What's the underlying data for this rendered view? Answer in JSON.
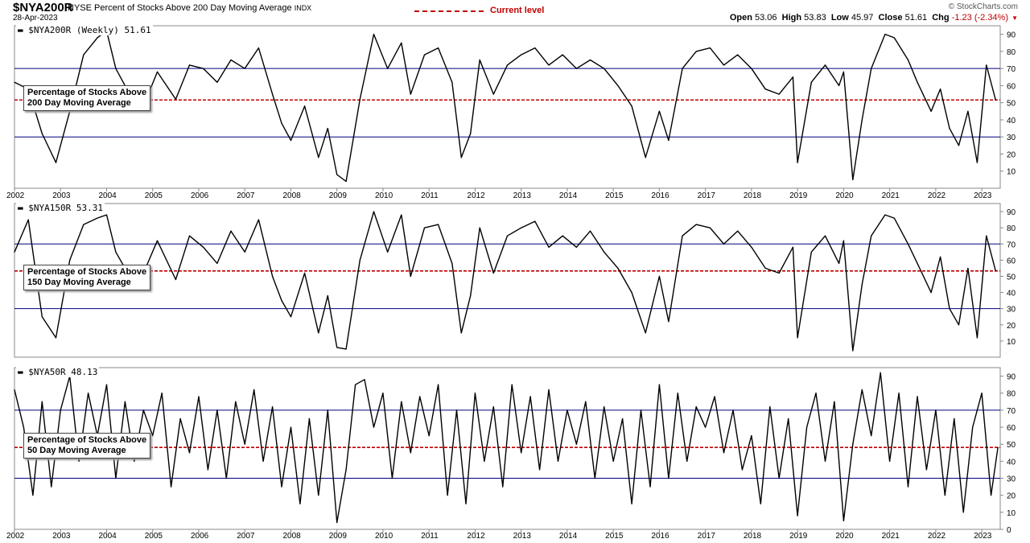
{
  "header": {
    "symbol": "$NYA200R",
    "description": "NYSE Percent of Stocks Above 200 Day Moving Average",
    "exchange": "INDX",
    "date": "28-Apr-2023",
    "legend_label": "Current level",
    "brand": "© StockCharts.com",
    "open_label": "Open",
    "open": "53.06",
    "high_label": "High",
    "high": "53.83",
    "low_label": "Low",
    "low": "45.97",
    "close_label": "Close",
    "close": "51.61",
    "chg_label": "Chg",
    "chg": "-1.23 (-2.34%)"
  },
  "colors": {
    "series": "#000000",
    "reference_lines": "#000080",
    "current_level": "#c00000",
    "axis": "#555555"
  },
  "chart_data": [
    {
      "type": "line",
      "panel_label": "$NYA200R (Weekly) 51.61",
      "callout": [
        "Percentage of Stocks Above",
        "200 Day Moving Average"
      ],
      "ylim": [
        0,
        95
      ],
      "yticks": [
        10,
        20,
        30,
        40,
        50,
        60,
        70,
        80,
        90
      ],
      "reference_lines": [
        30,
        70
      ],
      "current_level": 51.61,
      "x": [
        2002.0,
        2002.3,
        2002.6,
        2002.9,
        2003.2,
        2003.5,
        2003.8,
        2004.0,
        2004.2,
        2004.5,
        2004.8,
        2005.1,
        2005.5,
        2005.8,
        2006.1,
        2006.4,
        2006.7,
        2007.0,
        2007.3,
        2007.6,
        2007.8,
        2008.0,
        2008.3,
        2008.6,
        2008.8,
        2009.0,
        2009.2,
        2009.5,
        2009.8,
        2010.1,
        2010.4,
        2010.6,
        2010.9,
        2011.2,
        2011.5,
        2011.7,
        2011.9,
        2012.1,
        2012.4,
        2012.7,
        2013.0,
        2013.3,
        2013.6,
        2013.9,
        2014.2,
        2014.5,
        2014.8,
        2015.1,
        2015.4,
        2015.7,
        2016.0,
        2016.2,
        2016.5,
        2016.8,
        2017.1,
        2017.4,
        2017.7,
        2018.0,
        2018.3,
        2018.6,
        2018.9,
        2019.0,
        2019.3,
        2019.6,
        2019.9,
        2020.0,
        2020.2,
        2020.4,
        2020.6,
        2020.9,
        2021.1,
        2021.4,
        2021.6,
        2021.9,
        2022.1,
        2022.3,
        2022.5,
        2022.7,
        2022.9,
        2023.1,
        2023.3
      ],
      "y": [
        62,
        58,
        32,
        15,
        45,
        78,
        88,
        92,
        70,
        55,
        48,
        68,
        52,
        72,
        70,
        62,
        75,
        70,
        82,
        55,
        38,
        28,
        48,
        18,
        35,
        8,
        4,
        52,
        90,
        70,
        85,
        55,
        78,
        82,
        62,
        18,
        32,
        75,
        55,
        72,
        78,
        82,
        72,
        78,
        70,
        75,
        70,
        60,
        48,
        18,
        45,
        28,
        70,
        80,
        82,
        72,
        78,
        70,
        58,
        55,
        65,
        15,
        62,
        72,
        60,
        68,
        5,
        40,
        70,
        90,
        88,
        75,
        62,
        45,
        58,
        35,
        25,
        45,
        15,
        72,
        51.61
      ]
    },
    {
      "type": "line",
      "panel_label": "$NYA150R 53.31",
      "callout": [
        "Percentage of Stocks Above",
        "150 Day Moving Average"
      ],
      "ylim": [
        0,
        95
      ],
      "yticks": [
        10,
        20,
        30,
        40,
        50,
        60,
        70,
        80,
        90
      ],
      "reference_lines": [
        30,
        70
      ],
      "current_level": 53.31,
      "x": [
        2002.0,
        2002.3,
        2002.6,
        2002.9,
        2003.2,
        2003.5,
        2003.8,
        2004.0,
        2004.2,
        2004.5,
        2004.8,
        2005.1,
        2005.5,
        2005.8,
        2006.1,
        2006.4,
        2006.7,
        2007.0,
        2007.3,
        2007.6,
        2007.8,
        2008.0,
        2008.3,
        2008.6,
        2008.8,
        2009.0,
        2009.2,
        2009.5,
        2009.8,
        2010.1,
        2010.4,
        2010.6,
        2010.9,
        2011.2,
        2011.5,
        2011.7,
        2011.9,
        2012.1,
        2012.4,
        2012.7,
        2013.0,
        2013.3,
        2013.6,
        2013.9,
        2014.2,
        2014.5,
        2014.8,
        2015.1,
        2015.4,
        2015.7,
        2016.0,
        2016.2,
        2016.5,
        2016.8,
        2017.1,
        2017.4,
        2017.7,
        2018.0,
        2018.3,
        2018.6,
        2018.9,
        2019.0,
        2019.3,
        2019.6,
        2019.9,
        2020.0,
        2020.2,
        2020.4,
        2020.6,
        2020.9,
        2021.1,
        2021.4,
        2021.6,
        2021.9,
        2022.1,
        2022.3,
        2022.5,
        2022.7,
        2022.9,
        2023.1,
        2023.3
      ],
      "y": [
        65,
        85,
        25,
        12,
        60,
        82,
        86,
        88,
        65,
        50,
        52,
        72,
        48,
        75,
        68,
        58,
        78,
        65,
        85,
        50,
        35,
        25,
        52,
        15,
        38,
        6,
        5,
        60,
        90,
        65,
        88,
        50,
        80,
        82,
        58,
        15,
        38,
        80,
        52,
        75,
        80,
        84,
        68,
        75,
        68,
        78,
        65,
        55,
        40,
        15,
        50,
        22,
        75,
        82,
        80,
        70,
        78,
        68,
        55,
        52,
        68,
        12,
        65,
        75,
        58,
        72,
        4,
        45,
        75,
        88,
        86,
        70,
        58,
        40,
        62,
        30,
        20,
        55,
        12,
        75,
        53.31
      ]
    },
    {
      "type": "line",
      "panel_label": "$NYA50R 48.13",
      "callout": [
        "Percentage of Stocks Above",
        "50 Day Moving Average"
      ],
      "ylim": [
        0,
        95
      ],
      "yticks": [
        0,
        10,
        20,
        30,
        40,
        50,
        60,
        70,
        80,
        90
      ],
      "reference_lines": [
        30,
        70
      ],
      "current_level": 48.13,
      "x": [
        2002.0,
        2002.2,
        2002.4,
        2002.6,
        2002.8,
        2003.0,
        2003.2,
        2003.4,
        2003.6,
        2003.8,
        2004.0,
        2004.2,
        2004.4,
        2004.6,
        2004.8,
        2005.0,
        2005.2,
        2005.4,
        2005.6,
        2005.8,
        2006.0,
        2006.2,
        2006.4,
        2006.6,
        2006.8,
        2007.0,
        2007.2,
        2007.4,
        2007.6,
        2007.8,
        2008.0,
        2008.2,
        2008.4,
        2008.6,
        2008.8,
        2009.0,
        2009.2,
        2009.4,
        2009.6,
        2009.8,
        2010.0,
        2010.2,
        2010.4,
        2010.6,
        2010.8,
        2011.0,
        2011.2,
        2011.4,
        2011.6,
        2011.8,
        2012.0,
        2012.2,
        2012.4,
        2012.6,
        2012.8,
        2013.0,
        2013.2,
        2013.4,
        2013.6,
        2013.8,
        2014.0,
        2014.2,
        2014.4,
        2014.6,
        2014.8,
        2015.0,
        2015.2,
        2015.4,
        2015.6,
        2015.8,
        2016.0,
        2016.2,
        2016.4,
        2016.6,
        2016.8,
        2017.0,
        2017.2,
        2017.4,
        2017.6,
        2017.8,
        2018.0,
        2018.2,
        2018.4,
        2018.6,
        2018.8,
        2019.0,
        2019.2,
        2019.4,
        2019.6,
        2019.8,
        2020.0,
        2020.2,
        2020.4,
        2020.6,
        2020.8,
        2021.0,
        2021.2,
        2021.4,
        2021.6,
        2021.8,
        2022.0,
        2022.2,
        2022.4,
        2022.6,
        2022.8,
        2023.0,
        2023.2,
        2023.35
      ],
      "y": [
        82,
        60,
        20,
        75,
        25,
        70,
        90,
        40,
        80,
        55,
        85,
        30,
        75,
        40,
        70,
        55,
        80,
        25,
        65,
        45,
        78,
        35,
        70,
        30,
        75,
        50,
        82,
        40,
        72,
        25,
        60,
        15,
        65,
        20,
        70,
        4,
        35,
        85,
        88,
        60,
        80,
        30,
        75,
        45,
        78,
        55,
        85,
        20,
        70,
        15,
        80,
        40,
        72,
        25,
        85,
        45,
        78,
        35,
        82,
        40,
        70,
        50,
        75,
        30,
        72,
        40,
        65,
        15,
        70,
        25,
        85,
        30,
        80,
        40,
        72,
        60,
        78,
        45,
        70,
        35,
        55,
        15,
        72,
        30,
        65,
        8,
        60,
        80,
        40,
        75,
        5,
        50,
        82,
        55,
        92,
        40,
        80,
        25,
        78,
        35,
        70,
        20,
        65,
        10,
        60,
        80,
        20,
        48.13
      ]
    }
  ],
  "years": [
    "2002",
    "2003",
    "2004",
    "2005",
    "2006",
    "2007",
    "2008",
    "2009",
    "2010",
    "2011",
    "2012",
    "2013",
    "2014",
    "2015",
    "2016",
    "2017",
    "2018",
    "2019",
    "2020",
    "2021",
    "2022",
    "2023"
  ]
}
